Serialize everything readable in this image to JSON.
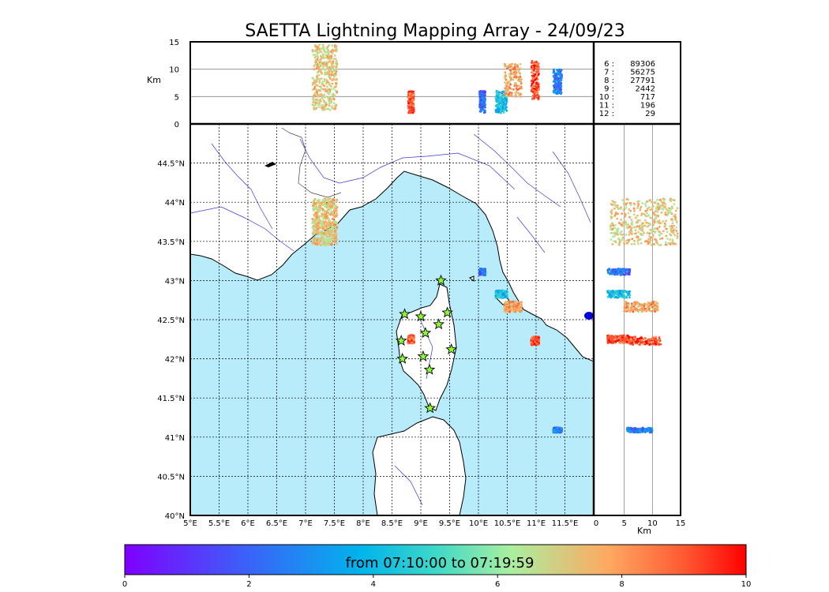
{
  "title": "SAETTA Lightning Mapping Array - 24/09/23",
  "chart_data": {
    "type": "scatter",
    "map": {
      "lon_range": [
        5,
        12
      ],
      "lat_range": [
        40,
        45
      ],
      "lon_ticks": [
        "5°E",
        "5.5°E",
        "6°E",
        "6.5°E",
        "7°E",
        "7.5°E",
        "8°E",
        "8.5°E",
        "9°E",
        "9.5°E",
        "10°E",
        "10.5°E",
        "11°E",
        "11.5°E"
      ],
      "lat_ticks": [
        "40°N",
        "40.5°N",
        "41°N",
        "41.5°N",
        "42°N",
        "42.5°N",
        "43°N",
        "43.5°N",
        "44°N",
        "44.5°N"
      ],
      "grid": true
    },
    "altitude_axis": {
      "label": "Km",
      "range": [
        0,
        15
      ],
      "ticks": [
        "0",
        "5",
        "10",
        "15"
      ]
    },
    "counts": [
      {
        "label": "6 :",
        "value": "89306",
        "highlight": false
      },
      {
        "label": "7 :",
        "value": "56275",
        "highlight": true
      },
      {
        "label": "8 :",
        "value": "27791",
        "highlight": false
      },
      {
        "label": "9 :",
        "value": "2442",
        "highlight": false
      },
      {
        "label": "10 :",
        "value": "717",
        "highlight": false
      },
      {
        "label": "11 :",
        "value": "196",
        "highlight": false
      },
      {
        "label": "12 :",
        "value": "29",
        "highlight": false
      }
    ],
    "stations": [
      {
        "lon": 9.35,
        "lat": 43.0
      },
      {
        "lon": 8.72,
        "lat": 42.57
      },
      {
        "lon": 9.0,
        "lat": 42.54
      },
      {
        "lon": 9.46,
        "lat": 42.59
      },
      {
        "lon": 9.31,
        "lat": 42.44
      },
      {
        "lon": 9.08,
        "lat": 42.33
      },
      {
        "lon": 8.66,
        "lat": 42.23
      },
      {
        "lon": 9.53,
        "lat": 42.12
      },
      {
        "lon": 9.04,
        "lat": 42.03
      },
      {
        "lon": 8.68,
        "lat": 42.0
      },
      {
        "lon": 9.15,
        "lat": 41.86
      },
      {
        "lon": 9.16,
        "lat": 41.37
      }
    ],
    "clusters": [
      {
        "lon": [
          7.12,
          7.55
        ],
        "lat": [
          43.45,
          44.05
        ],
        "alt": [
          2.5,
          14.5
        ],
        "time": 7.2
      },
      {
        "lon": [
          8.78,
          8.88
        ],
        "lat": [
          42.2,
          42.3
        ],
        "alt": [
          2.0,
          6.0
        ],
        "time": 9.0
      },
      {
        "lon": [
          10.02,
          10.12
        ],
        "lat": [
          43.07,
          43.15
        ],
        "alt": [
          2.0,
          6.0
        ],
        "time": 2.3
      },
      {
        "lon": [
          10.3,
          10.5
        ],
        "lat": [
          42.78,
          42.87
        ],
        "alt": [
          2.0,
          6.0
        ],
        "time": 4.0
      },
      {
        "lon": [
          10.45,
          10.75
        ],
        "lat": [
          42.6,
          42.73
        ],
        "alt": [
          5.0,
          11.0
        ],
        "time": 7.8
      },
      {
        "lon": [
          10.92,
          11.05
        ],
        "lat": [
          42.18,
          42.28
        ],
        "alt": [
          4.5,
          11.5
        ],
        "time": 9.2
      },
      {
        "lon": [
          11.3,
          11.45
        ],
        "lat": [
          41.06,
          41.12
        ],
        "alt": [
          5.5,
          10.0
        ],
        "time": 2.5
      }
    ],
    "colorbar": {
      "range": [
        0,
        10
      ],
      "ticks": [
        "0",
        "2",
        "4",
        "6",
        "8",
        "10"
      ],
      "label": "from 07:10:00 to 07:19:59"
    }
  }
}
